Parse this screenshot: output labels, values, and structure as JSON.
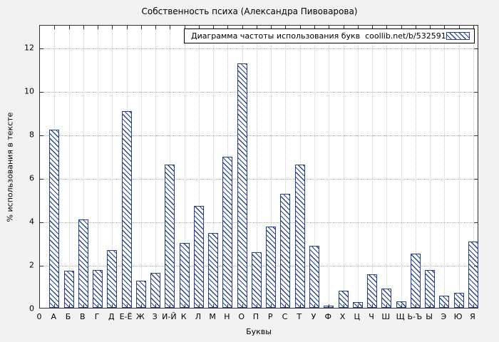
{
  "page": {
    "background": "#f2f2f2",
    "plot_background": "#ffffff"
  },
  "chart_data": {
    "type": "bar",
    "title": "Собственность психа (Александра Пивоварова)",
    "legend": "Диаграмма частоты использования букв  coollib.net/b/532591",
    "legend_position": "top-right",
    "xlabel": "Буквы",
    "ylabel": "% использования в тексте",
    "origin_label": "0",
    "ylim": [
      0,
      13.05
    ],
    "yticks": [
      0,
      2,
      4,
      6,
      8,
      10,
      12
    ],
    "grid": true,
    "bar_style": "diagonal-hatch",
    "bar_color": "#26418f",
    "categories": [
      "А",
      "Б",
      "В",
      "Г",
      "Д",
      "Е-Ё",
      "Ж",
      "З",
      "И-Й",
      "К",
      "Л",
      "М",
      "Н",
      "О",
      "П",
      "Р",
      "С",
      "Т",
      "У",
      "Ф",
      "Х",
      "Ц",
      "Ч",
      "Ш",
      "Щ",
      "Ь-Ъ",
      "Ы",
      "Э",
      "Ю",
      "Я"
    ],
    "values": [
      8.2,
      1.7,
      4.05,
      1.75,
      2.65,
      9.05,
      1.25,
      1.6,
      6.6,
      3.0,
      4.7,
      3.45,
      6.95,
      11.25,
      2.55,
      3.75,
      5.25,
      6.6,
      2.85,
      0.1,
      0.8,
      0.25,
      1.55,
      0.9,
      0.3,
      2.5,
      1.75,
      0.55,
      0.7,
      3.05
    ]
  }
}
